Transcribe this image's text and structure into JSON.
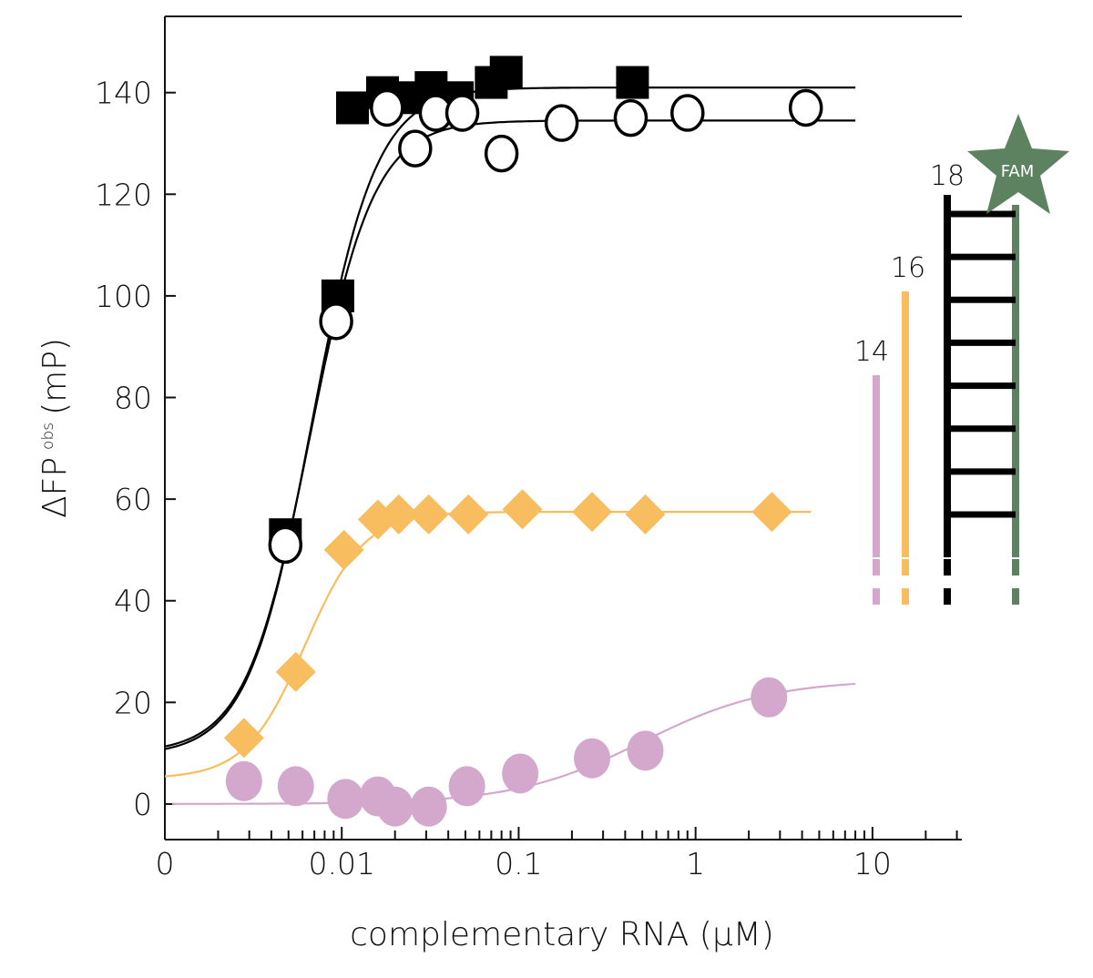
{
  "chart_data": {
    "type": "scatter",
    "x_scale": "log",
    "xlabel": "complementary RNA (μM)",
    "ylabel_main": "ΔFP",
    "ylabel_sub": "obs",
    "ylabel_unit": "(mP)",
    "xlim": [
      0.001,
      32
    ],
    "ylim": [
      -7,
      155
    ],
    "x_ticks": [
      {
        "value": 0.001,
        "label": "0"
      },
      {
        "value": 0.01,
        "label": "0.01"
      },
      {
        "value": 0.1,
        "label": "0.1"
      },
      {
        "value": 1,
        "label": "1"
      },
      {
        "value": 10,
        "label": "10"
      }
    ],
    "y_ticks": [
      0,
      20,
      40,
      60,
      80,
      100,
      120,
      140
    ],
    "grid": false,
    "series": [
      {
        "name": "18",
        "marker": "square-filled",
        "color": "#000000",
        "points": [
          {
            "x": 0.0048,
            "y": 53
          },
          {
            "x": 0.0095,
            "y": 100
          },
          {
            "x": 0.0115,
            "y": 137
          },
          {
            "x": 0.017,
            "y": 140
          },
          {
            "x": 0.025,
            "y": 139
          },
          {
            "x": 0.032,
            "y": 141
          },
          {
            "x": 0.045,
            "y": 139
          },
          {
            "x": 0.07,
            "y": 142
          },
          {
            "x": 0.085,
            "y": 144
          },
          {
            "x": 0.44,
            "y": 142
          }
        ],
        "fit": {
          "bottom": 9.5,
          "top": 141,
          "ec50": 0.0068,
          "hill": 2.4
        }
      },
      {
        "name": "18",
        "marker": "circle-open",
        "color": "#000000",
        "points": [
          {
            "x": 0.0048,
            "y": 51
          },
          {
            "x": 0.0093,
            "y": 95
          },
          {
            "x": 0.018,
            "y": 137
          },
          {
            "x": 0.026,
            "y": 129
          },
          {
            "x": 0.034,
            "y": 136
          },
          {
            "x": 0.048,
            "y": 136
          },
          {
            "x": 0.08,
            "y": 128
          },
          {
            "x": 0.175,
            "y": 134
          },
          {
            "x": 0.43,
            "y": 135
          },
          {
            "x": 0.9,
            "y": 136
          },
          {
            "x": 4.2,
            "y": 137
          }
        ],
        "fit": {
          "bottom": 10,
          "top": 134.5,
          "ec50": 0.0066,
          "hill": 2.4
        }
      },
      {
        "name": "16",
        "marker": "diamond-filled",
        "color": "#f8bd5e",
        "points": [
          {
            "x": 0.0028,
            "y": 13
          },
          {
            "x": 0.0055,
            "y": 26
          },
          {
            "x": 0.0103,
            "y": 50
          },
          {
            "x": 0.016,
            "y": 56
          },
          {
            "x": 0.021,
            "y": 57
          },
          {
            "x": 0.031,
            "y": 57
          },
          {
            "x": 0.052,
            "y": 57
          },
          {
            "x": 0.105,
            "y": 58
          },
          {
            "x": 0.26,
            "y": 57.5
          },
          {
            "x": 0.52,
            "y": 57
          },
          {
            "x": 2.7,
            "y": 57.5
          }
        ],
        "fit": {
          "bottom": 5,
          "top": 57.5,
          "ec50": 0.0062,
          "hill": 2.6
        }
      },
      {
        "name": "14",
        "marker": "circle-filled",
        "color": "#d3a8cc",
        "points": [
          {
            "x": 0.0028,
            "y": 4.5
          },
          {
            "x": 0.0055,
            "y": 3.5
          },
          {
            "x": 0.0105,
            "y": 1
          },
          {
            "x": 0.016,
            "y": 1.5
          },
          {
            "x": 0.02,
            "y": -0.5
          },
          {
            "x": 0.031,
            "y": -0.5
          },
          {
            "x": 0.051,
            "y": 3.5
          },
          {
            "x": 0.102,
            "y": 6
          },
          {
            "x": 0.26,
            "y": 9
          },
          {
            "x": 0.52,
            "y": 10.5
          },
          {
            "x": 2.6,
            "y": 21
          }
        ],
        "fit": {
          "bottom": 0,
          "top": 24.5,
          "ec50": 0.5,
          "hill": 1.2
        }
      }
    ],
    "inset": {
      "labels": [
        "14",
        "16",
        "18"
      ],
      "colors": [
        "#d3a8cc",
        "#f8bd5e",
        "#000000",
        "#5c8260"
      ],
      "fam_label": "FAM",
      "rungs": 8
    }
  }
}
